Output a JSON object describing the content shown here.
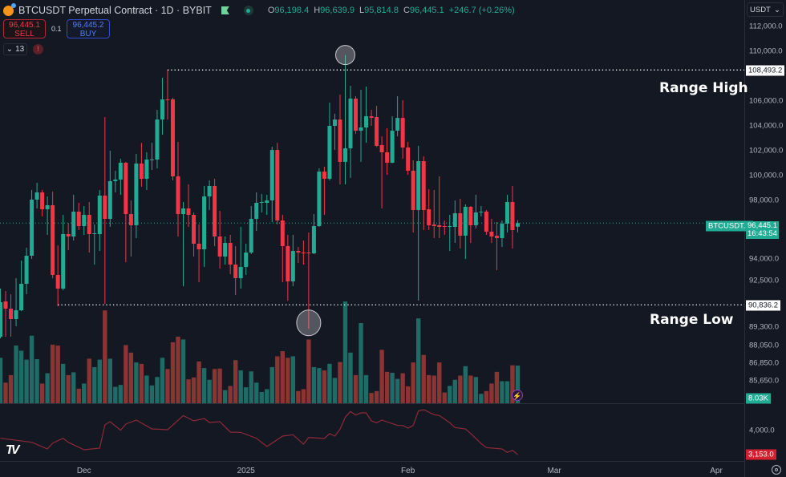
{
  "header": {
    "title": "BTCUSDT Perpetual Contract · 1D · BYBIT",
    "ohlc": {
      "o_label": "O",
      "o": "96,198.4",
      "h_label": "H",
      "h": "96,639.9",
      "l_label": "L",
      "l": "95,814.8",
      "c_label": "C",
      "c": "96,445.1",
      "change": "+246.7 (+0.26%)"
    },
    "sell": {
      "price": "96,445.1",
      "label": "SELL"
    },
    "buy": {
      "price": "96,445.2",
      "label": "BUY"
    },
    "quantity": "0.1",
    "indicators_count": "13",
    "warning": "!"
  },
  "colors": {
    "up": "#22ab94",
    "down": "#f23645",
    "vol_up": "#1f6b66",
    "vol_down": "#8a3434",
    "oscillator": "#8e2a36",
    "background": "#141823"
  },
  "price_axis": {
    "currency": "USDT",
    "ticks": [
      "112,000.0",
      "110,000.0",
      "106,000.0",
      "104,000.0",
      "102,000.0",
      "100,000.0",
      "98,000.0",
      "94,000.0",
      "92,500.0",
      "89,300.0",
      "88,050.0",
      "86,850.0",
      "85,650.0"
    ],
    "tick_values": [
      112000,
      110000,
      106000,
      104000,
      102000,
      100000,
      98000,
      94000,
      92500,
      89300,
      88050,
      86850,
      85650
    ],
    "range_high_tag": "108,493.2",
    "range_low_tag": "90,836.2",
    "last_price_tag": "96,445.1",
    "countdown": "16:43:54",
    "symbol_tag": "BTCUSDT.P",
    "volume_tag": "8.03K",
    "osc_tick": "4,000.0",
    "osc_last_tag": "3,153.0"
  },
  "time_axis": {
    "labels": [
      {
        "label": "Dec",
        "date": "2024-12-01"
      },
      {
        "label": "2025",
        "date": "2025-01-01"
      },
      {
        "label": "Feb",
        "date": "2025-02-01"
      },
      {
        "label": "Mar",
        "date": "2025-03-01"
      },
      {
        "label": "Apr",
        "date": "2025-04-01"
      }
    ]
  },
  "annotations": {
    "range_high": {
      "text": "Range High",
      "price": 108493.2,
      "from": "2024-12-17"
    },
    "range_low": {
      "text": "Range Low",
      "price": 90836.2,
      "from": "2024-11-26"
    },
    "circles": [
      {
        "date": "2025-01-20",
        "price": 109700
      },
      {
        "date": "2025-01-13",
        "price": 89600
      }
    ]
  },
  "chart_data": {
    "type": "candlestick",
    "symbol": "BTCUSDT.P",
    "interval": "1D",
    "last_price": 96445.1,
    "candle_fields": [
      "date",
      "open",
      "high",
      "low",
      "close",
      "volume_k"
    ],
    "candles": [
      [
        "2024-11-15",
        88650,
        91950,
        88540,
        91015,
        9.7
      ],
      [
        "2024-11-16",
        91070,
        91785,
        88650,
        90575,
        4.4
      ],
      [
        "2024-11-17",
        90575,
        91565,
        88650,
        89860,
        6.0
      ],
      [
        "2024-11-18",
        89860,
        92665,
        89365,
        90465,
        12.3
      ],
      [
        "2024-11-19",
        90465,
        93875,
        90400,
        92280,
        11.2
      ],
      [
        "2024-11-20",
        92280,
        94755,
        91565,
        94205,
        9.3
      ],
      [
        "2024-11-21",
        94205,
        98840,
        93985,
        98065,
        14.4
      ],
      [
        "2024-11-22",
        98065,
        99420,
        97450,
        98645,
        9.4
      ],
      [
        "2024-11-23",
        98645,
        98840,
        96900,
        97395,
        4.2
      ],
      [
        "2024-11-24",
        97395,
        98320,
        95635,
        97670,
        6.4
      ],
      [
        "2024-11-25",
        97670,
        98710,
        92665,
        92885,
        12.5
      ],
      [
        "2024-11-26",
        92885,
        94920,
        90740,
        91950,
        12.3
      ],
      [
        "2024-11-27",
        91950,
        97010,
        91840,
        95690,
        8.4
      ],
      [
        "2024-11-28",
        95690,
        96460,
        94590,
        95525,
        6.0
      ],
      [
        "2024-11-29",
        95525,
        98450,
        95250,
        97230,
        6.6
      ],
      [
        "2024-11-30",
        97230,
        97835,
        95965,
        96240,
        3.1
      ],
      [
        "2024-12-01",
        96240,
        97615,
        95635,
        97010,
        4.2
      ],
      [
        "2024-12-02",
        97010,
        97890,
        94425,
        95690,
        9.5
      ],
      [
        "2024-12-03",
        95690,
        96350,
        93600,
        95745,
        7.7
      ],
      [
        "2024-12-04",
        95690,
        98840,
        94535,
        98390,
        9.3
      ],
      [
        "2024-12-05",
        98390,
        104710,
        90900,
        96735,
        19.8
      ],
      [
        "2024-12-06",
        96735,
        102000,
        96185,
        99550,
        9.5
      ],
      [
        "2024-12-07",
        99550,
        100390,
        98645,
        99680,
        3.5
      ],
      [
        "2024-12-08",
        99680,
        101350,
        98450,
        101030,
        3.9
      ],
      [
        "2024-12-09",
        101030,
        101100,
        93765,
        97065,
        12.4
      ],
      [
        "2024-12-10",
        97065,
        98000,
        94150,
        96295,
        10.8
      ],
      [
        "2024-12-11",
        96295,
        101740,
        95415,
        100970,
        8.7
      ],
      [
        "2024-12-12",
        100970,
        102640,
        99100,
        99740,
        8.4
      ],
      [
        "2024-12-13",
        99740,
        101870,
        98840,
        101290,
        5.9
      ],
      [
        "2024-12-14",
        101290,
        102640,
        100450,
        101300,
        3.8
      ],
      [
        "2024-12-15",
        101290,
        105290,
        100580,
        104510,
        5.6
      ],
      [
        "2024-12-16",
        104510,
        107870,
        103290,
        106130,
        9.7
      ],
      [
        "2024-12-17",
        106130,
        108493.2,
        104510,
        106100,
        7.3
      ],
      [
        "2024-12-18",
        106130,
        106260,
        99610,
        99940,
        13.0
      ],
      [
        "2024-12-19",
        99940,
        102710,
        95525,
        97065,
        14.2
      ],
      [
        "2024-12-20",
        97065,
        97890,
        92115,
        97450,
        13.6
      ],
      [
        "2024-12-21",
        97450,
        99290,
        96185,
        97010,
        5.1
      ],
      [
        "2024-12-22",
        97010,
        97175,
        94150,
        95030,
        5.5
      ],
      [
        "2024-12-23",
        95030,
        96350,
        92390,
        94645,
        8.9
      ],
      [
        "2024-12-24",
        94645,
        99160,
        93435,
        98320,
        7.5
      ],
      [
        "2024-12-25",
        98320,
        99610,
        97340,
        99160,
        5.0
      ],
      [
        "2024-12-26",
        99160,
        99740,
        94865,
        95525,
        7.3
      ],
      [
        "2024-12-27",
        95525,
        97285,
        93325,
        94150,
        7.4
      ],
      [
        "2024-12-28",
        94150,
        95525,
        93600,
        95085,
        2.8
      ],
      [
        "2024-12-29",
        95085,
        95635,
        92940,
        93600,
        3.7
      ],
      [
        "2024-12-30",
        93600,
        94865,
        91510,
        92665,
        9.2
      ],
      [
        "2024-12-31",
        92665,
        96185,
        91950,
        93435,
        7.0
      ],
      [
        "2025-01-01",
        93435,
        95030,
        92885,
        94425,
        3.4
      ],
      [
        "2025-01-02",
        94425,
        97615,
        94315,
        96735,
        6.8
      ],
      [
        "2025-01-03",
        96735,
        98645,
        95910,
        97835,
        4.4
      ],
      [
        "2025-01-04",
        97835,
        98520,
        97175,
        97890,
        2.4
      ],
      [
        "2025-01-05",
        97835,
        98450,
        97010,
        98000,
        3.0
      ],
      [
        "2025-01-06",
        98000,
        102320,
        96515,
        102060,
        7.7
      ],
      [
        "2025-01-07",
        102060,
        102640,
        96350,
        96625,
        10.0
      ],
      [
        "2025-01-08",
        96625,
        97010,
        92390,
        94865,
        11.1
      ],
      [
        "2025-01-09",
        94865,
        95635,
        91125,
        92445,
        9.7
      ],
      [
        "2025-01-10",
        92445,
        95635,
        92115,
        94535,
        10.0
      ],
      [
        "2025-01-11",
        94535,
        94810,
        93710,
        94425,
        2.6
      ],
      [
        "2025-01-12",
        94425,
        95250,
        93600,
        94370,
        3.0
      ],
      [
        "2025-01-13",
        94425,
        95800,
        89200,
        94370,
        13.6
      ],
      [
        "2025-01-14",
        94370,
        97065,
        94315,
        96240,
        7.7
      ],
      [
        "2025-01-15",
        96240,
        100580,
        96185,
        100320,
        7.5
      ],
      [
        "2025-01-16",
        100320,
        100710,
        97010,
        99740,
        7.0
      ],
      [
        "2025-01-17",
        99740,
        105870,
        99610,
        104000,
        8.4
      ],
      [
        "2025-01-18",
        104000,
        104970,
        102060,
        104510,
        5.4
      ],
      [
        "2025-01-19",
        104510,
        106510,
        99290,
        101100,
        8.8
      ],
      [
        "2025-01-20",
        101100,
        109700,
        99290,
        102190,
        21.7
      ],
      [
        "2025-01-21",
        102190,
        107220,
        99810,
        106190,
        10.8
      ],
      [
        "2025-01-22",
        106190,
        106390,
        103350,
        103610,
        6.0
      ],
      [
        "2025-01-23",
        103610,
        106900,
        101100,
        103870,
        17.1
      ],
      [
        "2025-01-24",
        103870,
        107160,
        102640,
        104770,
        6.0
      ],
      [
        "2025-01-25",
        104770,
        105290,
        104000,
        104640,
        2.2
      ],
      [
        "2025-01-26",
        104710,
        105610,
        102300,
        102390,
        2.6
      ],
      [
        "2025-01-27",
        102450,
        103160,
        97450,
        101870,
        11.4
      ],
      [
        "2025-01-28",
        101870,
        103810,
        100060,
        101030,
        6.7
      ],
      [
        "2025-01-29",
        101030,
        104770,
        101000,
        103610,
        6.5
      ],
      [
        "2025-01-30",
        103610,
        106390,
        103160,
        104640,
        5.2
      ],
      [
        "2025-01-31",
        104640,
        106060,
        101350,
        102260,
        6.4
      ],
      [
        "2025-02-01",
        102260,
        102710,
        100060,
        100390,
        3.6
      ],
      [
        "2025-02-02",
        100390,
        101230,
        95800,
        97340,
        8.7
      ],
      [
        "2025-02-03",
        97340,
        102390,
        91125,
        101160,
        18.1
      ],
      [
        "2025-02-04",
        101160,
        101550,
        95965,
        97340,
        10.3
      ],
      [
        "2025-02-05",
        97395,
        98900,
        95965,
        96295,
        6.0
      ],
      [
        "2025-02-06",
        96350,
        98840,
        95415,
        96240,
        5.9
      ],
      [
        "2025-02-07",
        96295,
        99940,
        95415,
        96185,
        8.7
      ],
      [
        "2025-02-08",
        96240,
        96625,
        95635,
        96185,
        2.3
      ],
      [
        "2025-02-09",
        96185,
        97010,
        94535,
        96240,
        3.7
      ],
      [
        "2025-02-10",
        96185,
        98000,
        95085,
        97120,
        5.0
      ],
      [
        "2025-02-11",
        97120,
        98130,
        94700,
        95580,
        5.9
      ],
      [
        "2025-02-12",
        95580,
        97725,
        93985,
        97560,
        7.9
      ],
      [
        "2025-02-13",
        97560,
        97615,
        95085,
        96295,
        5.9
      ],
      [
        "2025-02-14",
        96295,
        98450,
        96075,
        97175,
        5.6
      ],
      [
        "2025-02-15",
        97175,
        97615,
        96900,
        97230,
        2.0
      ],
      [
        "2025-02-16",
        97230,
        97340,
        95635,
        95855,
        2.6
      ],
      [
        "2025-02-17",
        95855,
        96735,
        95085,
        95525,
        4.2
      ],
      [
        "2025-02-18",
        95580,
        96515,
        93215,
        95415,
        6.7
      ],
      [
        "2025-02-19",
        95415,
        96625,
        94810,
        96405,
        4.7
      ],
      [
        "2025-02-20",
        96405,
        98450,
        95800,
        97890,
        4.7
      ],
      [
        "2025-02-21",
        97890,
        99160,
        94700,
        95965,
        8.1
      ],
      [
        "2025-02-22",
        96198.4,
        96639.9,
        95814.8,
        96445.1,
        8.03
      ]
    ],
    "oscillator": [
      [
        "2024-11-15",
        3726
      ],
      [
        "2024-11-21",
        3586
      ],
      [
        "2024-11-24",
        3351
      ],
      [
        "2024-11-25",
        3557
      ],
      [
        "2024-11-27",
        3726
      ],
      [
        "2024-11-28",
        3585
      ],
      [
        "2024-12-01",
        3323
      ],
      [
        "2024-12-04",
        3380
      ],
      [
        "2024-12-05",
        4197
      ],
      [
        "2024-12-06",
        4310
      ],
      [
        "2024-12-08",
        4009
      ],
      [
        "2024-12-09",
        4226
      ],
      [
        "2024-12-11",
        4367
      ],
      [
        "2024-12-14",
        4056
      ],
      [
        "2024-12-17",
        4028
      ],
      [
        "2024-12-20",
        4527
      ],
      [
        "2024-12-22",
        4338
      ],
      [
        "2024-12-24",
        4423
      ],
      [
        "2024-12-25",
        4282
      ],
      [
        "2024-12-27",
        4310
      ],
      [
        "2024-12-29",
        3944
      ],
      [
        "2024-12-31",
        3935
      ],
      [
        "2025-01-03",
        3726
      ],
      [
        "2025-01-05",
        3436
      ],
      [
        "2025-01-08",
        3803
      ],
      [
        "2025-01-10",
        3850
      ],
      [
        "2025-01-12",
        3520
      ],
      [
        "2025-01-13",
        3756
      ],
      [
        "2025-01-16",
        3718
      ],
      [
        "2025-01-17",
        3887
      ],
      [
        "2025-01-18",
        3803
      ],
      [
        "2025-01-19",
        4047
      ],
      [
        "2025-01-20",
        4470
      ],
      [
        "2025-01-21",
        4668
      ],
      [
        "2025-01-22",
        4545
      ],
      [
        "2025-01-23",
        4620
      ],
      [
        "2025-01-24",
        4620
      ],
      [
        "2025-01-25",
        4338
      ],
      [
        "2025-01-26",
        4272
      ],
      [
        "2025-01-27",
        4367
      ],
      [
        "2025-01-30",
        4178
      ],
      [
        "2025-01-31",
        4178
      ],
      [
        "2025-02-01",
        4084
      ],
      [
        "2025-02-02",
        4178
      ],
      [
        "2025-02-03",
        4686
      ],
      [
        "2025-02-04",
        4733
      ],
      [
        "2025-02-06",
        4555
      ],
      [
        "2025-02-07",
        4527
      ],
      [
        "2025-02-09",
        4272
      ],
      [
        "2025-02-10",
        4103
      ],
      [
        "2025-02-12",
        4056
      ],
      [
        "2025-02-13",
        3897
      ],
      [
        "2025-02-15",
        3539
      ],
      [
        "2025-02-16",
        3398
      ],
      [
        "2025-02-19",
        3351
      ],
      [
        "2025-02-20",
        3229
      ],
      [
        "2025-02-21",
        3304
      ],
      [
        "2025-02-22",
        3153
      ]
    ]
  }
}
